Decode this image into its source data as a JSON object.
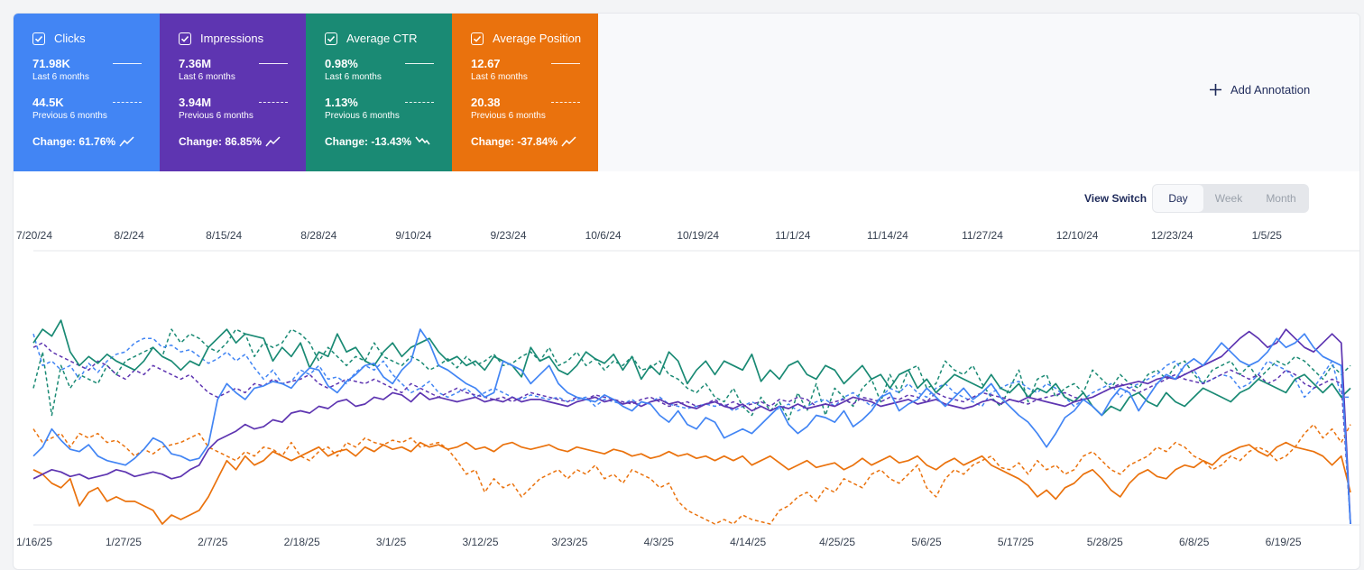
{
  "metrics": [
    {
      "id": "clicks",
      "label": "Clicks",
      "color": "#4285f4",
      "current": "71.98K",
      "current_label": "Last 6 months",
      "previous": "44.5K",
      "previous_label": "Previous 6 months",
      "change": "Change: 61.76%",
      "trend": "up"
    },
    {
      "id": "impressions",
      "label": "Impressions",
      "color": "#5e35b1",
      "current": "7.36M",
      "current_label": "Last 6 months",
      "previous": "3.94M",
      "previous_label": "Previous 6 months",
      "change": "Change: 86.85%",
      "trend": "up"
    },
    {
      "id": "ctr",
      "label": "Average CTR",
      "color": "#1a8a74",
      "current": "0.98%",
      "current_label": "Last 6 months",
      "previous": "1.13%",
      "previous_label": "Previous 6 months",
      "change": "Change: -13.43%",
      "trend": "down"
    },
    {
      "id": "position",
      "label": "Average Position",
      "color": "#ea720d",
      "current": "12.67",
      "current_label": "Last 6 months",
      "previous": "20.38",
      "previous_label": "Previous 6 months",
      "change": "Change: -37.84%",
      "trend": "up"
    }
  ],
  "add_annotation_label": "Add Annotation",
  "view_switch": {
    "label": "View Switch",
    "options": [
      "Day",
      "Week",
      "Month"
    ],
    "selected": "Day"
  },
  "chart_data": {
    "type": "line",
    "x_top_ticks": [
      "7/20/24",
      "8/2/24",
      "8/15/24",
      "8/28/24",
      "9/10/24",
      "9/23/24",
      "10/6/24",
      "10/19/24",
      "11/1/24",
      "11/14/24",
      "11/27/24",
      "12/10/24",
      "12/23/24",
      "1/5/25"
    ],
    "x_bottom_ticks": [
      "1/16/25",
      "1/27/25",
      "2/7/25",
      "2/18/25",
      "3/1/25",
      "3/12/25",
      "3/23/25",
      "4/3/25",
      "4/14/25",
      "4/25/25",
      "5/6/25",
      "5/17/25",
      "5/28/25",
      "6/8/25",
      "6/19/25"
    ],
    "ylim": [
      0,
      100
    ],
    "grid": false,
    "series": [
      {
        "name": "Clicks",
        "period": "Last 6 months",
        "color": "#4285f4",
        "style": "solid",
        "values": [
          30,
          34,
          42,
          37,
          33,
          32,
          35,
          30,
          28,
          27,
          26,
          29,
          33,
          38,
          36,
          31,
          30,
          28,
          29,
          35,
          55,
          62,
          58,
          55,
          60,
          61,
          63,
          62,
          60,
          65,
          69,
          68,
          61,
          58,
          63,
          66,
          70,
          71,
          65,
          62,
          68,
          72,
          86,
          80,
          70,
          68,
          65,
          62,
          60,
          56,
          58,
          72,
          70,
          68,
          62,
          66,
          70,
          62,
          58,
          56,
          55,
          54,
          57,
          55,
          52,
          50,
          54,
          53,
          48,
          45,
          50,
          44,
          42,
          47,
          45,
          38,
          40,
          42,
          40,
          44,
          48,
          52,
          44,
          40,
          43,
          48,
          47,
          45,
          50,
          43,
          46,
          50,
          56,
          58,
          50,
          53,
          55,
          60,
          56,
          52,
          56,
          60,
          55,
          58,
          62,
          56,
          52,
          48,
          45,
          40,
          34,
          40,
          47,
          50,
          55,
          52,
          48,
          55,
          60,
          58,
          50,
          56,
          62,
          66,
          64,
          70,
          73,
          70,
          75,
          80,
          76,
          72,
          70,
          72,
          76,
          82,
          78,
          80,
          84,
          78,
          74,
          72,
          70,
          0
        ]
      },
      {
        "name": "Impressions",
        "period": "Last 6 months",
        "color": "#5e35b1",
        "style": "solid",
        "values": [
          20,
          22,
          24,
          23,
          21,
          22,
          20,
          21,
          22,
          24,
          23,
          21,
          22,
          23,
          22,
          20,
          21,
          24,
          26,
          33,
          37,
          39,
          41,
          44,
          42,
          43,
          46,
          45,
          49,
          50,
          49,
          52,
          51,
          54,
          55,
          52,
          53,
          56,
          55,
          58,
          57,
          54,
          58,
          55,
          56,
          55,
          54,
          55,
          56,
          54,
          55,
          54,
          56,
          54,
          55,
          55,
          54,
          53,
          52,
          54,
          55,
          56,
          54,
          55,
          53,
          54,
          52,
          54,
          55,
          53,
          54,
          52,
          51,
          53,
          54,
          52,
          51,
          53,
          50,
          52,
          50,
          52,
          51,
          53,
          51,
          52,
          53,
          52,
          54,
          56,
          55,
          54,
          52,
          53,
          54,
          55,
          53,
          54,
          55,
          53,
          52,
          51,
          52,
          54,
          55,
          53,
          55,
          54,
          56,
          55,
          54,
          53,
          52,
          54,
          55,
          56,
          58,
          60,
          61,
          62,
          63,
          62,
          64,
          65,
          64,
          66,
          68,
          70,
          72,
          74,
          78,
          82,
          85,
          82,
          78,
          80,
          86,
          82,
          78,
          76,
          80,
          84,
          80,
          0
        ]
      },
      {
        "name": "Average CTR",
        "period": "Last 6 months",
        "color": "#1a8a74",
        "style": "solid",
        "values": [
          80,
          86,
          83,
          90,
          76,
          70,
          74,
          71,
          75,
          72,
          70,
          68,
          72,
          78,
          74,
          72,
          68,
          72,
          70,
          78,
          82,
          86,
          80,
          84,
          83,
          82,
          72,
          78,
          74,
          80,
          69,
          76,
          74,
          84,
          76,
          78,
          72,
          70,
          76,
          80,
          74,
          78,
          80,
          82,
          76,
          72,
          74,
          70,
          72,
          68,
          74,
          72,
          70,
          65,
          78,
          72,
          74,
          68,
          66,
          70,
          76,
          73,
          71,
          75,
          68,
          74,
          64,
          70,
          66,
          76,
          72,
          62,
          68,
          72,
          66,
          72,
          70,
          68,
          75,
          63,
          68,
          64,
          70,
          72,
          66,
          64,
          70,
          68,
          62,
          66,
          70,
          64,
          66,
          60,
          66,
          68,
          60,
          64,
          58,
          62,
          66,
          64,
          62,
          60,
          66,
          60,
          58,
          62,
          56,
          60,
          58,
          62,
          56,
          54,
          58,
          52,
          48,
          52,
          50,
          56,
          58,
          54,
          52,
          58,
          54,
          52,
          56,
          60,
          58,
          56,
          54,
          58,
          60,
          64,
          62,
          60,
          58,
          64,
          66,
          62,
          58,
          62,
          56,
          60
        ]
      },
      {
        "name": "Average Position",
        "period": "Last 6 months",
        "color": "#ea720d",
        "style": "solid",
        "values": [
          24,
          22,
          18,
          16,
          20,
          8,
          14,
          16,
          10,
          12,
          10,
          10,
          8,
          6,
          0,
          4,
          2,
          4,
          6,
          12,
          20,
          28,
          24,
          30,
          26,
          28,
          32,
          30,
          28,
          30,
          32,
          34,
          30,
          32,
          33,
          30,
          34,
          32,
          35,
          33,
          34,
          32,
          36,
          34,
          35,
          33,
          34,
          36,
          33,
          34,
          32,
          35,
          36,
          34,
          33,
          34,
          35,
          33,
          32,
          34,
          33,
          32,
          31,
          33,
          32,
          30,
          31,
          29,
          30,
          32,
          30,
          31,
          29,
          30,
          28,
          30,
          28,
          30,
          26,
          28,
          30,
          27,
          24,
          26,
          28,
          25,
          26,
          27,
          24,
          26,
          29,
          26,
          28,
          30,
          27,
          28,
          30,
          26,
          24,
          27,
          29,
          26,
          28,
          30,
          26,
          24,
          22,
          20,
          17,
          12,
          15,
          11,
          16,
          18,
          22,
          24,
          20,
          15,
          12,
          18,
          22,
          24,
          21,
          20,
          24,
          26,
          25,
          28,
          26,
          30,
          32,
          34,
          35,
          32,
          30,
          34,
          36,
          34,
          33,
          32,
          30,
          26,
          30,
          14
        ]
      },
      {
        "name": "Clicks",
        "period": "Previous 6 months",
        "color": "#4285f4",
        "style": "dashed",
        "values": [
          84,
          70,
          72,
          68,
          70,
          64,
          71,
          67,
          72,
          75,
          76,
          80,
          82,
          82,
          78,
          79,
          76,
          77,
          74,
          71,
          73,
          76,
          72,
          75,
          69,
          64,
          68,
          62,
          63,
          68,
          66,
          70,
          64,
          65,
          62,
          67,
          70,
          68,
          72,
          66,
          62,
          58,
          60,
          63,
          58,
          56,
          58,
          60,
          56,
          58,
          60,
          58,
          56,
          55,
          57,
          56,
          55,
          56,
          54,
          55,
          56,
          52,
          55,
          54,
          53,
          55,
          52,
          54,
          56,
          53,
          52,
          51,
          52,
          53,
          52,
          53,
          50,
          52,
          54,
          52,
          50,
          51,
          53,
          50,
          52,
          54,
          55,
          52,
          56,
          58,
          55,
          52,
          56,
          60,
          58,
          62,
          58,
          56,
          60,
          62,
          58,
          56,
          54,
          52,
          58,
          60,
          62,
          63,
          60,
          58,
          62,
          60,
          56,
          52,
          55,
          58,
          60,
          62,
          56,
          60,
          62,
          64,
          66,
          70,
          72,
          66,
          68,
          62,
          64,
          66,
          65,
          60,
          62,
          66,
          72,
          70,
          68,
          64,
          56,
          60,
          66,
          72,
          56,
          56
        ]
      },
      {
        "name": "Impressions",
        "period": "Previous 6 months",
        "color": "#5e35b1",
        "style": "dashed",
        "values": [
          78,
          80,
          76,
          74,
          72,
          70,
          68,
          72,
          70,
          66,
          64,
          68,
          66,
          70,
          68,
          66,
          64,
          66,
          62,
          58,
          56,
          58,
          60,
          58,
          62,
          61,
          64,
          62,
          63,
          64,
          66,
          62,
          60,
          62,
          64,
          63,
          62,
          64,
          62,
          60,
          58,
          62,
          60,
          58,
          56,
          58,
          60,
          58,
          57,
          56,
          55,
          56,
          54,
          56,
          58,
          57,
          56,
          55,
          54,
          56,
          55,
          57,
          56,
          55,
          54,
          53,
          55,
          56,
          54,
          52,
          53,
          54,
          52,
          53,
          55,
          52,
          54,
          52,
          53,
          54,
          52,
          55,
          54,
          56,
          55,
          52,
          53,
          54,
          55,
          53,
          56,
          55,
          54,
          56,
          55,
          57,
          56,
          54,
          58,
          56,
          55,
          54,
          56,
          58,
          57,
          56,
          55,
          54,
          53,
          55,
          56,
          57,
          58,
          56,
          55,
          56,
          58,
          60,
          62,
          60,
          58,
          60,
          62,
          64,
          66,
          64,
          63,
          62,
          64,
          66,
          68,
          66,
          64,
          66,
          62,
          64,
          68,
          66,
          62,
          60,
          62,
          64,
          62,
          0
        ]
      },
      {
        "name": "Average CTR",
        "period": "Previous 6 months",
        "color": "#1a8a74",
        "style": "dashed",
        "values": [
          60,
          76,
          48,
          70,
          60,
          66,
          64,
          62,
          70,
          66,
          72,
          74,
          76,
          78,
          74,
          86,
          80,
          84,
          82,
          78,
          76,
          80,
          86,
          84,
          74,
          80,
          78,
          80,
          86,
          84,
          80,
          72,
          78,
          74,
          70,
          74,
          72,
          80,
          74,
          72,
          70,
          74,
          72,
          68,
          70,
          73,
          69,
          74,
          70,
          72,
          75,
          70,
          71,
          74,
          76,
          72,
          78,
          70,
          72,
          76,
          70,
          73,
          68,
          72,
          70,
          74,
          68,
          69,
          72,
          66,
          64,
          60,
          58,
          62,
          56,
          54,
          60,
          52,
          48,
          56,
          50,
          54,
          46,
          58,
          50,
          62,
          48,
          60,
          56,
          52,
          60,
          64,
          54,
          66,
          58,
          68,
          70,
          60,
          62,
          72,
          68,
          66,
          70,
          62,
          56,
          52,
          60,
          68,
          54,
          64,
          66,
          56,
          60,
          62,
          58,
          68,
          64,
          60,
          66,
          62,
          60,
          66,
          68,
          64,
          70,
          72,
          66,
          62,
          68,
          70,
          72,
          66,
          70,
          64,
          68,
          72,
          70,
          74,
          72,
          68,
          64,
          70,
          66,
          70
        ]
      },
      {
        "name": "Average Position",
        "period": "Previous 6 months",
        "color": "#ea720d",
        "style": "dashed",
        "values": [
          42,
          36,
          38,
          40,
          34,
          40,
          38,
          40,
          36,
          37,
          34,
          30,
          33,
          31,
          34,
          35,
          36,
          38,
          40,
          34,
          32,
          30,
          28,
          32,
          30,
          34,
          33,
          30,
          36,
          30,
          28,
          32,
          34,
          30,
          36,
          34,
          38,
          36,
          35,
          37,
          36,
          38,
          34,
          35,
          36,
          33,
          28,
          22,
          24,
          14,
          20,
          16,
          18,
          12,
          16,
          20,
          22,
          24,
          20,
          24,
          22,
          26,
          20,
          22,
          18,
          24,
          22,
          20,
          16,
          18,
          10,
          6,
          4,
          2,
          0,
          2,
          0,
          4,
          2,
          1,
          0,
          6,
          8,
          12,
          14,
          10,
          16,
          14,
          20,
          18,
          16,
          22,
          24,
          20,
          18,
          22,
          26,
          16,
          12,
          20,
          24,
          22,
          26,
          28,
          30,
          25,
          24,
          27,
          22,
          28,
          24,
          26,
          22,
          24,
          30,
          32,
          28,
          24,
          22,
          26,
          28,
          30,
          34,
          32,
          36,
          34,
          30,
          28,
          24,
          26,
          30,
          28,
          32,
          34,
          32,
          28,
          30,
          34,
          40,
          44,
          38,
          42,
          36,
          44
        ]
      }
    ]
  }
}
